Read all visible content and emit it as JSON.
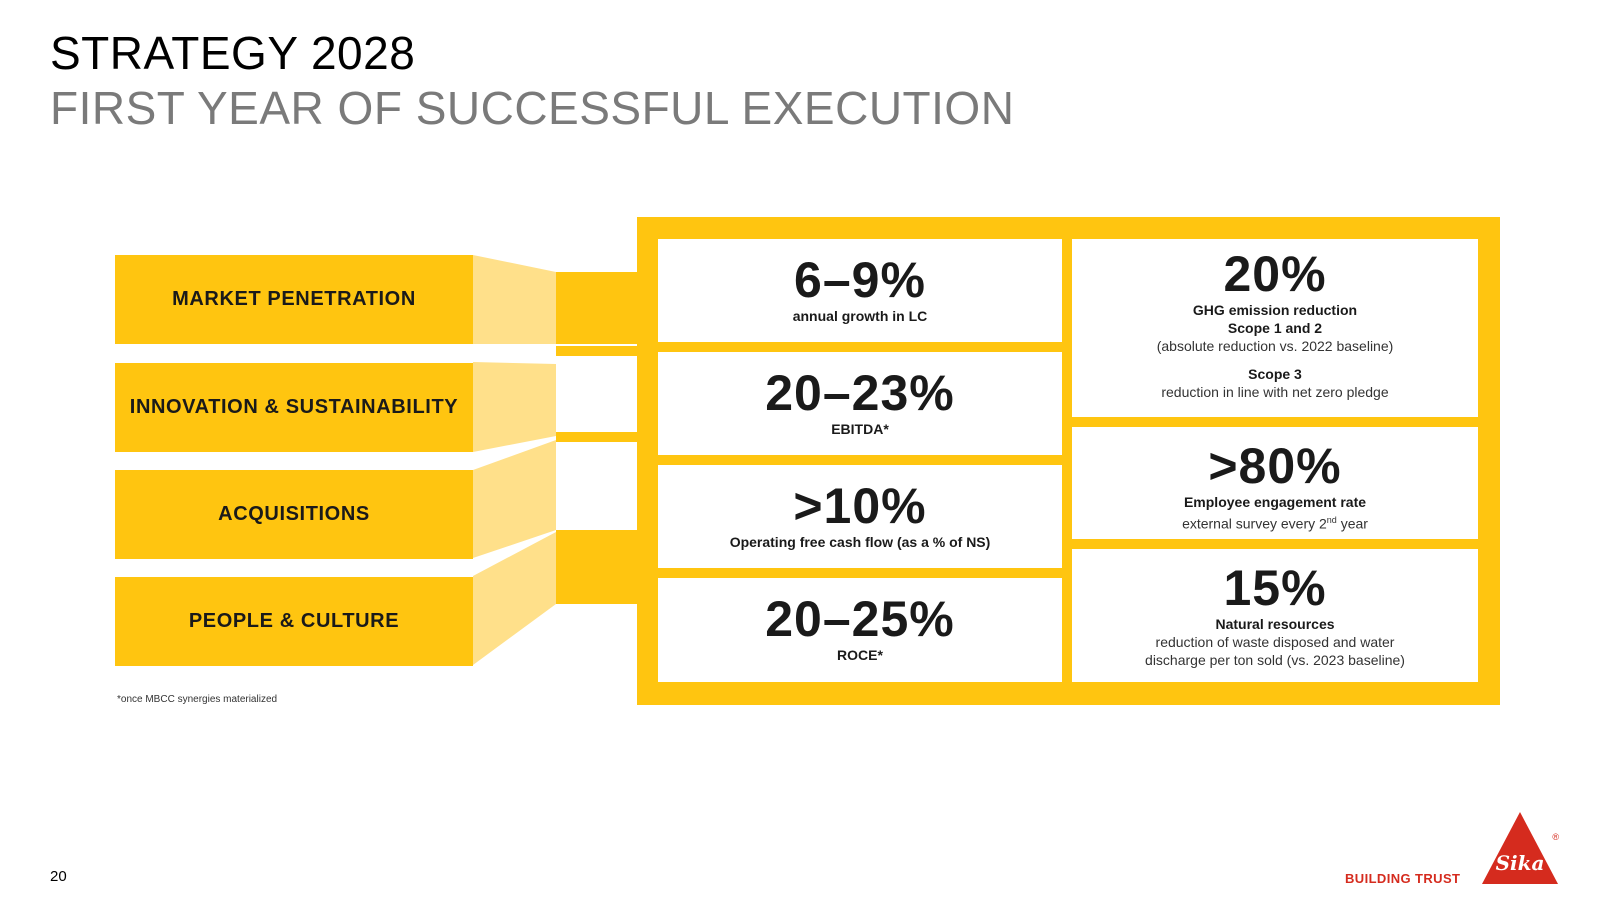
{
  "header": {
    "title": "STRATEGY 2028",
    "subtitle": "FIRST YEAR OF SUCCESSFUL EXECUTION"
  },
  "pillars": [
    "MARKET PENETRATION",
    "INNOVATION & SUSTAINABILITY",
    "ACQUISITIONS",
    "PEOPLE & CULTURE"
  ],
  "financial_targets": [
    {
      "value": "6–9%",
      "label": "annual growth in LC"
    },
    {
      "value": "20–23%",
      "label": "EBITDA*"
    },
    {
      "value": ">10%",
      "label": "Operating free cash flow (as a % of NS)"
    },
    {
      "value": "20–25%",
      "label": "ROCE*"
    }
  ],
  "sustainability_targets": {
    "ghg": {
      "value": "20%",
      "label": "GHG emission reduction",
      "scope12_label": "Scope 1 and 2",
      "scope12_text": "(absolute reduction vs. 2022 baseline)",
      "scope3_label": "Scope 3",
      "scope3_text": "reduction in line with net zero pledge"
    },
    "employee": {
      "value": ">80%",
      "label": "Employee engagement rate",
      "text_prefix": "external survey every 2",
      "text_sup": "nd",
      "text_suffix": " year"
    },
    "resources": {
      "value": "15%",
      "label": "Natural resources",
      "text_line1": "reduction of waste disposed and water",
      "text_line2": "discharge per ton sold (vs. 2023 baseline)"
    }
  },
  "footnote": "*once MBCC synergies materialized",
  "footer": {
    "page_number": "20",
    "tagline": "BUILDING TRUST",
    "logo_text": "Sika",
    "registered_mark": "®"
  },
  "colors": {
    "accent_yellow": "#ffc510",
    "light_yellow": "#ffe08a",
    "brand_red": "#d52b1e"
  }
}
